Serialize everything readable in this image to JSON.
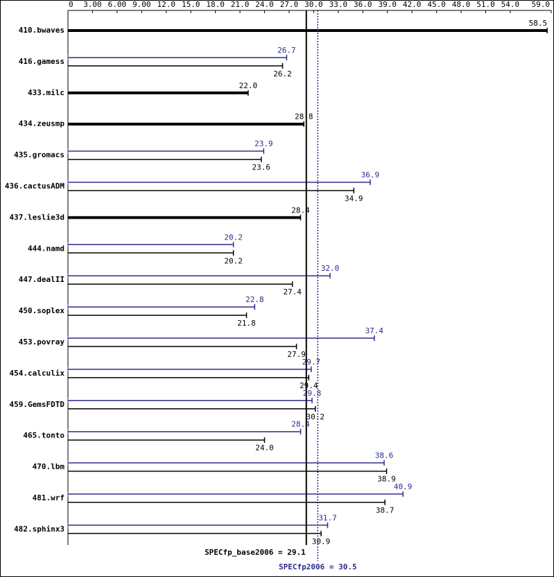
{
  "chart_data": {
    "type": "bar",
    "categories": [
      "410.bwaves",
      "416.gamess",
      "433.milc",
      "434.zeusmp",
      "435.gromacs",
      "436.cactusADM",
      "437.leslie3d",
      "444.namd",
      "447.dealII",
      "450.soplex",
      "453.povray",
      "454.calculix",
      "459.GemsFDTD",
      "465.tonto",
      "470.lbm",
      "481.wrf",
      "482.sphinx3"
    ],
    "series": [
      {
        "color": "#2b2b8c",
        "values": [
          null,
          26.7,
          null,
          null,
          23.9,
          36.9,
          null,
          20.2,
          32.0,
          22.8,
          37.4,
          29.7,
          29.8,
          28.4,
          38.6,
          40.9,
          31.7
        ],
        "value_labels": [
          null,
          "26.7",
          null,
          null,
          "23.9",
          "36.9",
          null,
          "20.2",
          "32.0",
          "22.8",
          "37.4",
          "29.7",
          "29.8",
          "28.4",
          "38.6",
          "40.9",
          "31.7"
        ]
      },
      {
        "color": "#000000",
        "values": [
          58.5,
          26.2,
          22.0,
          28.8,
          23.6,
          34.9,
          28.4,
          20.2,
          27.4,
          21.8,
          27.9,
          29.4,
          30.2,
          24.0,
          38.9,
          38.7,
          30.9
        ],
        "value_labels": [
          "58.5",
          "26.2",
          "22.0",
          "28.8",
          "23.6",
          "34.9",
          "28.4",
          "20.2",
          "27.4",
          "21.8",
          "27.9",
          "29.4",
          "30.2",
          "24.0",
          "38.9",
          "38.7",
          "30.9"
        ]
      }
    ],
    "xlim": [
      0,
      59
    ],
    "xticks": [
      0,
      {
        "value": 3,
        "label": "3.00"
      },
      {
        "value": 6,
        "label": "6.00"
      },
      {
        "value": 9,
        "label": "9.00"
      },
      {
        "value": 12,
        "label": "12.0"
      },
      {
        "value": 15,
        "label": "15.0"
      },
      {
        "value": 18,
        "label": "18.0"
      },
      {
        "value": 21,
        "label": "21.0"
      },
      {
        "value": 24,
        "label": "24.0"
      },
      {
        "value": 27,
        "label": "27.0"
      },
      {
        "value": 30,
        "label": "30.0"
      },
      {
        "value": 33,
        "label": "33.0"
      },
      {
        "value": 36,
        "label": "36.0"
      },
      {
        "value": 39,
        "label": "39.0"
      },
      {
        "value": 42,
        "label": "42.0"
      },
      {
        "value": 45,
        "label": "45.0"
      },
      {
        "value": 48,
        "label": "48.0"
      },
      {
        "value": 51,
        "label": "51.0"
      },
      {
        "value": 54,
        "label": "54.0"
      },
      {
        "value": 59,
        "label": "59.0"
      }
    ],
    "reference_lines": [
      {
        "text": "SPECfp_base2006 = 29.1",
        "value": 29.1,
        "color": "#000000",
        "style": "solid"
      },
      {
        "text": "SPECfp2006 = 30.5",
        "value": 30.5,
        "color": "#2b2b8c",
        "style": "dotted"
      }
    ]
  }
}
